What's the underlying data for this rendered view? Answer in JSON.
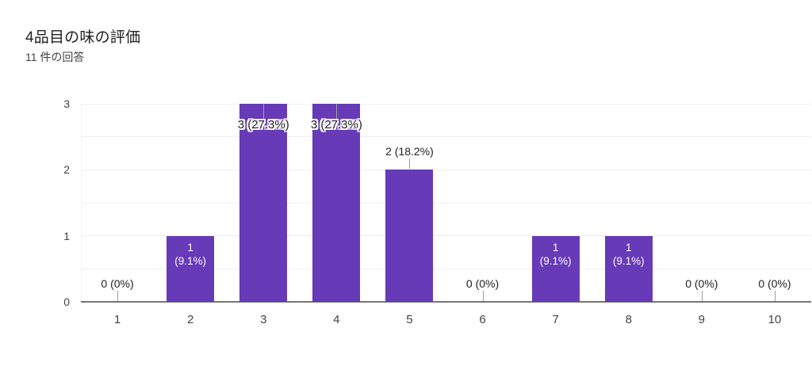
{
  "chart_data": {
    "type": "bar",
    "title": "4品目の味の評価",
    "subtitle": "11 件の回答",
    "categories": [
      "1",
      "2",
      "3",
      "4",
      "5",
      "6",
      "7",
      "8",
      "9",
      "10"
    ],
    "values": [
      0,
      1,
      3,
      3,
      2,
      0,
      1,
      1,
      0,
      0
    ],
    "labels": [
      "0 (0%)",
      "1 (9.1%)",
      "3 (27.3%)",
      "3 (27.3%)",
      "2 (18.2%)",
      "0 (0%)",
      "1 (9.1%)",
      "1 (9.1%)",
      "0 (0%)",
      "0 (0%)"
    ],
    "total_responses": 11,
    "xlabel": "",
    "ylabel": "",
    "ylim": [
      0,
      3
    ],
    "yticks": [
      0,
      1,
      2,
      3
    ],
    "grid": "horizontal, minor lines every 0.5",
    "legend": "none",
    "bar_color": "#673AB7",
    "label_color_inside": "#ffffff",
    "label_color_outside": "#212121",
    "axis_color": "#757575",
    "gridline_color": "#eeeeee"
  }
}
